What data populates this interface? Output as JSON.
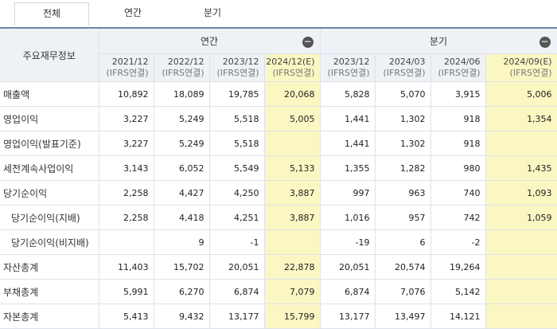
{
  "tabs": [
    "전체",
    "연간",
    "분기"
  ],
  "header": {
    "corner": "주요재무정보",
    "groups": [
      "연간",
      "분기"
    ],
    "collapse_icon": "minus-circle-icon",
    "periods": [
      {
        "date": "2021/12",
        "std": "(IFRS연결)"
      },
      {
        "date": "2022/12",
        "std": "(IFRS연결)"
      },
      {
        "date": "2023/12",
        "std": "(IFRS연결)"
      },
      {
        "date": "2024/12(E)",
        "std": "(IFRS연결)"
      },
      {
        "date": "2023/12",
        "std": "(IFRS연결)"
      },
      {
        "date": "2024/03",
        "std": "(IFRS연결)"
      },
      {
        "date": "2024/06",
        "std": "(IFRS연결)"
      },
      {
        "date": "2024/09(E)",
        "std": "(IFRS연결)"
      }
    ]
  },
  "rows": [
    {
      "label": "매출액",
      "v": [
        "10,892",
        "18,089",
        "19,785",
        "20,068",
        "5,828",
        "5,070",
        "3,915",
        "5,006"
      ]
    },
    {
      "label": "영업이익",
      "v": [
        "3,227",
        "5,249",
        "5,518",
        "5,005",
        "1,441",
        "1,302",
        "918",
        "1,354"
      ]
    },
    {
      "label": "영업이익(발표기준)",
      "v": [
        "3,227",
        "5,249",
        "5,518",
        "",
        "1,441",
        "1,302",
        "918",
        ""
      ]
    },
    {
      "label": "세전계속사업이익",
      "v": [
        "3,143",
        "6,052",
        "5,549",
        "5,133",
        "1,355",
        "1,282",
        "980",
        "1,435"
      ]
    },
    {
      "label": "당기순이익",
      "v": [
        "2,258",
        "4,427",
        "4,250",
        "3,887",
        "997",
        "963",
        "740",
        "1,093"
      ]
    },
    {
      "label": "당기순이익(지배)",
      "v": [
        "2,258",
        "4,418",
        "4,251",
        "3,887",
        "1,016",
        "957",
        "742",
        "1,059"
      ]
    },
    {
      "label": "당기순이익(비지배)",
      "v": [
        "",
        "9",
        "-1",
        "",
        "-19",
        "6",
        "-2",
        ""
      ]
    },
    {
      "label": "자산총계",
      "v": [
        "11,403",
        "15,702",
        "20,051",
        "22,878",
        "20,051",
        "20,574",
        "19,264",
        ""
      ]
    },
    {
      "label": "부채총계",
      "v": [
        "5,991",
        "6,270",
        "6,874",
        "7,079",
        "6,874",
        "7,076",
        "5,142",
        ""
      ]
    },
    {
      "label": "자본총계",
      "v": [
        "5,413",
        "9,432",
        "13,177",
        "15,799",
        "13,177",
        "13,497",
        "14,121",
        ""
      ]
    }
  ]
}
